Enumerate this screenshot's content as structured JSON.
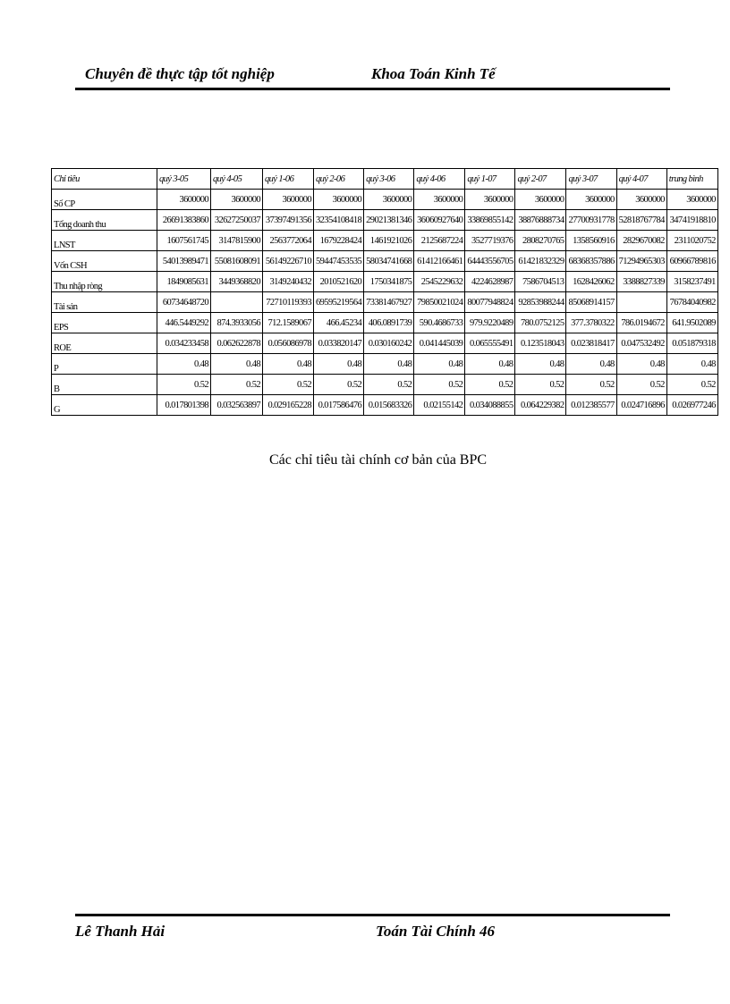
{
  "header": {
    "left": "Chuyên đề thực tập tốt nghiệp",
    "right": "Khoa Toán Kinh Tế"
  },
  "table": {
    "columns": [
      "Chỉ tiêu",
      "quý 3-05",
      "quý 4-05",
      "quý 1-06",
      "quý 2-06",
      "quý 3-06",
      "quý 4-06",
      "quý 1-07",
      "quý 2-07",
      "quý 3-07",
      "quý 4-07",
      "trung bình"
    ],
    "rows": [
      {
        "label": "Số CP",
        "values": [
          "3600000",
          "3600000",
          "3600000",
          "3600000",
          "3600000",
          "3600000",
          "3600000",
          "3600000",
          "3600000",
          "3600000",
          "3600000"
        ]
      },
      {
        "label": "Tổng doanh thu",
        "values": [
          "26691383860",
          "32627250037",
          "37397491356",
          "32354108418",
          "29021381346",
          "36060927640",
          "33869855142",
          "38876888734",
          "27700931778",
          "52818767784",
          "34741918810"
        ]
      },
      {
        "label": "LNST",
        "values": [
          "1607561745",
          "3147815900",
          "2563772064",
          "1679228424",
          "1461921026",
          "2125687224",
          "3527719376",
          "2808270765",
          "1358560916",
          "2829670082",
          "2311020752"
        ]
      },
      {
        "label": "Vốn CSH",
        "values": [
          "54013989471",
          "55081608091",
          "56149226710",
          "59447453535",
          "58034741668",
          "61412166461",
          "64443556705",
          "61421832329",
          "68368357886",
          "71294965303",
          "60966789816"
        ]
      },
      {
        "label": "Thu nhập ròng",
        "values": [
          "1849085631",
          "3449368820",
          "3149240432",
          "2010521620",
          "1750341875",
          "2545229632",
          "4224628987",
          "7586704513",
          "1628426062",
          "3388827339",
          "3158237491"
        ]
      },
      {
        "label": "Tài sản",
        "values": [
          "60734648720",
          "",
          "72710119393",
          "69595219564",
          "73381467927",
          "79850021024",
          "80077948824",
          "92853988244",
          "85068914157",
          "",
          "76784040982"
        ]
      },
      {
        "label": "EPS",
        "values": [
          "446.5449292",
          "874.3933056",
          "712.1589067",
          "466.45234",
          "406.0891739",
          "590.4686733",
          "979.9220489",
          "780.0752125",
          "377.3780322",
          "786.0194672",
          "641.9502089"
        ]
      },
      {
        "label": "ROE",
        "values": [
          "0.034233458",
          "0.062622878",
          "0.056086978",
          "0.033820147",
          "0.030160242",
          "0.041445039",
          "0.065555491",
          "0.123518043",
          "0.023818417",
          "0.047532492",
          "0.051879318"
        ]
      },
      {
        "label": "P",
        "values": [
          "0.48",
          "0.48",
          "0.48",
          "0.48",
          "0.48",
          "0.48",
          "0.48",
          "0.48",
          "0.48",
          "0.48",
          "0.48"
        ]
      },
      {
        "label": "B",
        "values": [
          "0.52",
          "0.52",
          "0.52",
          "0.52",
          "0.52",
          "0.52",
          "0.52",
          "0.52",
          "0.52",
          "0.52",
          "0.52"
        ]
      },
      {
        "label": "G",
        "values": [
          "0.017801398",
          "0.032563897",
          "0.029165228",
          "0.017586476",
          "0.015683326",
          "0.02155142",
          "0.034088855",
          "0.064229382",
          "0.012385577",
          "0.024716896",
          "0.026977246"
        ]
      }
    ]
  },
  "caption": "Các chỉ tiêu tài chính cơ bản của BPC",
  "footer": {
    "left": "Lê Thanh Hải",
    "right": "Toán Tài Chính 46"
  }
}
